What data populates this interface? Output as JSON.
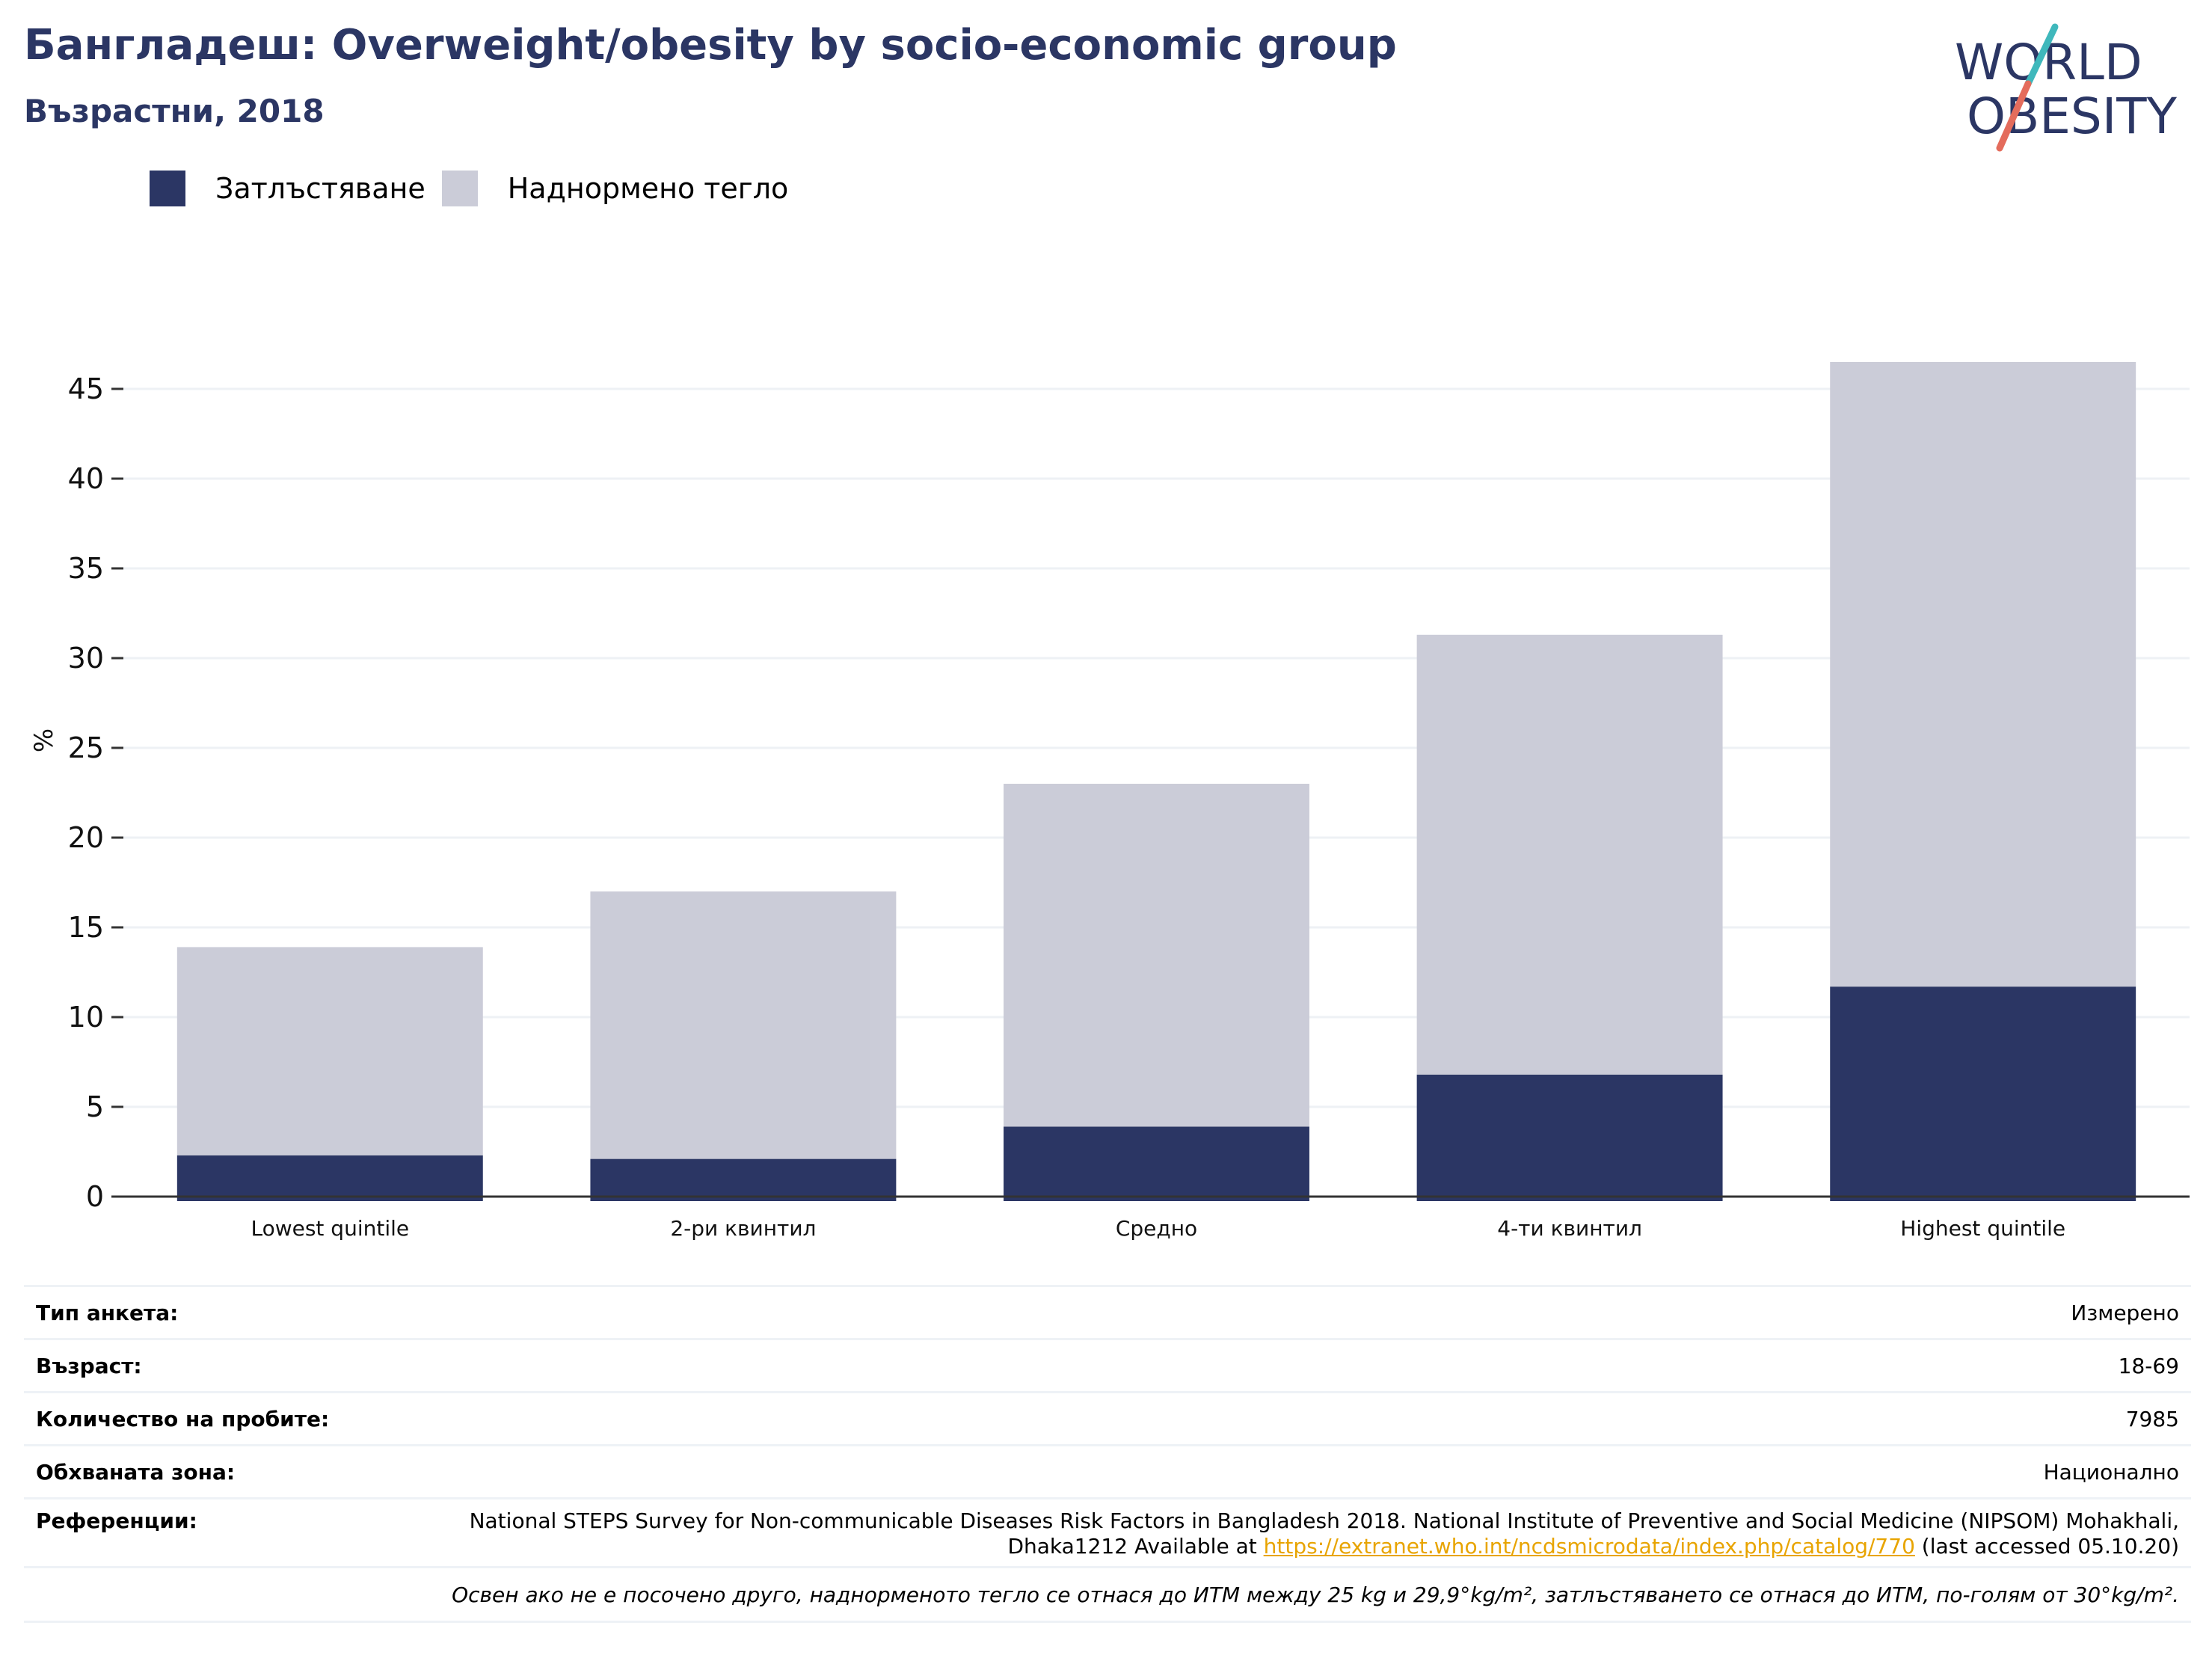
{
  "header": {
    "title": "Бангладеш: Overweight/obesity by socio-economic group",
    "subtitle": "Възрастни, 2018"
  },
  "logo": {
    "line1": "WORLD",
    "line2": "OBESITY"
  },
  "colors": {
    "obesity": "#2b3664",
    "overweight": "#cbccd8",
    "title": "#2b3664",
    "link": "#e8a400"
  },
  "legend": {
    "obesity": "Затлъстяване",
    "overweight": "Наднормено тегло"
  },
  "chart_data": {
    "type": "bar",
    "stacked": true,
    "title": "Бангладеш: Overweight/obesity by socio-economic group",
    "subtitle": "Възрастни, 2018",
    "categories": [
      "Lowest quintile",
      "2-ри квинтил",
      "Средно",
      "4-ти квинтил",
      "Highest quintile"
    ],
    "series": [
      {
        "name": "Затлъстяване",
        "values": [
          2.3,
          2.1,
          3.9,
          6.8,
          11.7
        ]
      },
      {
        "name": "Наднормено тегло",
        "values": [
          11.6,
          14.9,
          19.1,
          24.5,
          34.8
        ]
      }
    ],
    "ylabel": "%",
    "ylim": [
      0,
      47.5
    ],
    "yticks": [
      0,
      5,
      10,
      15,
      20,
      25,
      30,
      35,
      40,
      45
    ],
    "grid": true,
    "legend_position": "top-left"
  },
  "info": {
    "survey_type": {
      "label": "Тип анкета:",
      "value": "Измерено"
    },
    "age": {
      "label": "Възраст:",
      "value": "18-69"
    },
    "sample_size": {
      "label": "Количество на пробите:",
      "value": "7985"
    },
    "area": {
      "label": "Обхваната зона:",
      "value": "Национално"
    },
    "references": {
      "label": "Референции:",
      "text_before": "National STEPS Survey for Non-communicable Diseases Risk Factors in Bangladesh 2018. National Institute of Preventive and Social Medicine (NIPSOM) Mohakhali, Dhaka1212 Available at",
      "link": "https://extranet.who.int/ncdsmicrodata/index.php/catalog/770",
      "text_after": "(last accessed 05.10.20)"
    },
    "note": "Освен ако не е посочено друго, наднорменото тегло се отнася до ИТМ между 25 kg и 29,9°kg/m², затлъстяването се отнася до ИТМ, по-голям от 30°kg/m²."
  }
}
